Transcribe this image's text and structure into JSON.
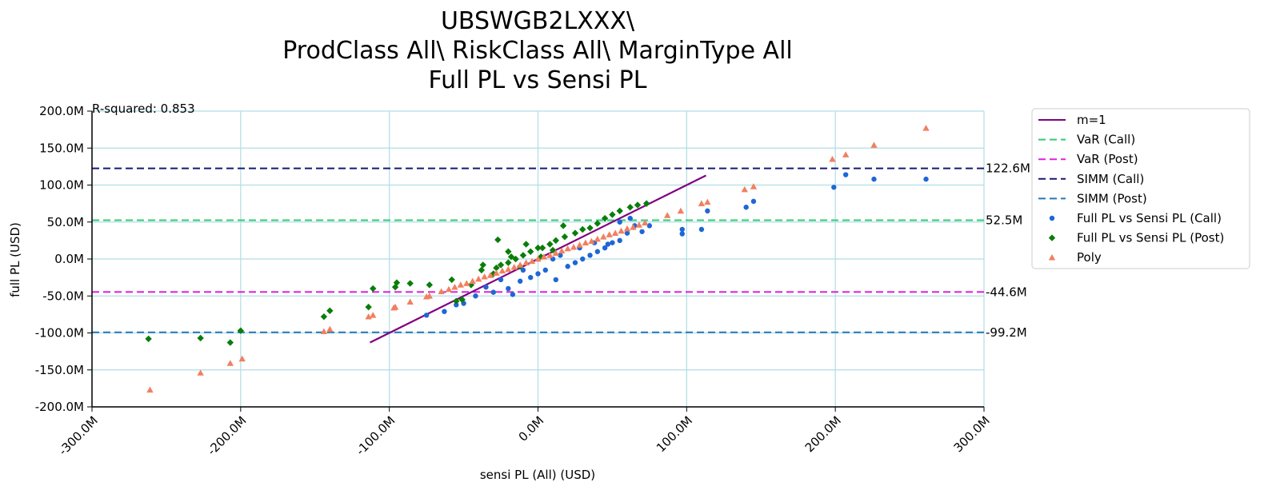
{
  "chart_data": {
    "type": "scatter",
    "title_lines": [
      "UBSWGB2LXXX\\",
      "ProdClass All\\ RiskClass All\\ MarginType All",
      "Full PL vs Sensi PL"
    ],
    "xlabel": "sensi PL (All) (USD)",
    "ylabel": "full PL (USD)",
    "xlim": [
      -300000000,
      300000000
    ],
    "ylim": [
      -200000000,
      200000000
    ],
    "x_ticks": [
      -300000000,
      -200000000,
      -100000000,
      0,
      100000000,
      200000000,
      300000000
    ],
    "x_tick_labels": [
      "-300.0M",
      "-200.0M",
      "-100.0M",
      "0.0M",
      "100.0M",
      "200.0M",
      "300.0M"
    ],
    "y_ticks": [
      200000000,
      150000000,
      100000000,
      50000000,
      0,
      -50000000,
      -100000000,
      -150000000,
      -200000000
    ],
    "y_tick_labels": [
      "200.0M",
      "150.0M",
      "100.0M",
      "50.0M",
      "0.0M",
      "-50.0M",
      "-100.0M",
      "-150.0M",
      "-200.0M"
    ],
    "grid": true,
    "legend_position": "outside-right",
    "annotation": "R-squared: 0.853",
    "lines": [
      {
        "name": "m=1",
        "color": "#800080",
        "style": "solid",
        "x": [
          -113000000,
          113000000
        ],
        "y": [
          -113000000,
          113000000
        ]
      }
    ],
    "hlines": [
      {
        "name": "VaR (Call)",
        "value": 52500000,
        "label": "52.5M",
        "color": "#2ecc71"
      },
      {
        "name": "VaR (Post)",
        "value": -44600000,
        "label": "-44.6M",
        "color": "#e020e0"
      },
      {
        "name": "SIMM (Call)",
        "value": 122600000,
        "label": "122.6M",
        "color": "#191970"
      },
      {
        "name": "SIMM (Post)",
        "value": -99200000,
        "label": "-99.2M",
        "color": "#2878b4"
      }
    ],
    "series": [
      {
        "name": "Full PL vs Sensi PL (Call)",
        "marker": "circle",
        "color": "#1f66d6",
        "points": [
          [
            -75000000,
            -76000000
          ],
          [
            -63000000,
            -71000000
          ],
          [
            -55000000,
            -62000000
          ],
          [
            -50000000,
            -60000000
          ],
          [
            -42000000,
            -50000000
          ],
          [
            -30000000,
            -45000000
          ],
          [
            -17000000,
            -48000000
          ],
          [
            -20000000,
            -40000000
          ],
          [
            -12000000,
            -30000000
          ],
          [
            -5000000,
            -25000000
          ],
          [
            0,
            -20000000
          ],
          [
            5000000,
            -15000000
          ],
          [
            12000000,
            -28000000
          ],
          [
            20000000,
            -10000000
          ],
          [
            25000000,
            -5000000
          ],
          [
            30000000,
            0
          ],
          [
            35000000,
            5000000
          ],
          [
            40000000,
            10000000
          ],
          [
            45000000,
            15000000
          ],
          [
            47000000,
            20000000
          ],
          [
            50000000,
            22000000
          ],
          [
            55000000,
            25000000
          ],
          [
            60000000,
            35000000
          ],
          [
            55000000,
            50000000
          ],
          [
            62000000,
            55000000
          ],
          [
            65000000,
            45000000
          ],
          [
            70000000,
            37000000
          ],
          [
            75000000,
            45000000
          ],
          [
            97000000,
            34000000
          ],
          [
            97000000,
            40000000
          ],
          [
            110000000,
            40000000
          ],
          [
            114000000,
            65000000
          ],
          [
            140000000,
            70000000
          ],
          [
            145000000,
            78000000
          ],
          [
            199000000,
            97000000
          ],
          [
            207000000,
            114000000
          ],
          [
            226000000,
            108000000
          ],
          [
            261000000,
            108000000
          ],
          [
            -35000000,
            -38000000
          ],
          [
            -25000000,
            -28000000
          ],
          [
            -10000000,
            -15000000
          ],
          [
            10000000,
            0
          ],
          [
            15000000,
            5000000
          ],
          [
            28000000,
            15000000
          ],
          [
            38000000,
            22000000
          ]
        ]
      },
      {
        "name": "Full PL vs Sensi PL (Post)",
        "marker": "diamond",
        "color": "#0a7d0a",
        "points": [
          [
            -262000000,
            -108000000
          ],
          [
            -227000000,
            -107000000
          ],
          [
            -207000000,
            -113000000
          ],
          [
            -200000000,
            -97000000
          ],
          [
            -144000000,
            -78000000
          ],
          [
            -140000000,
            -70000000
          ],
          [
            -114000000,
            -65000000
          ],
          [
            -111000000,
            -40000000
          ],
          [
            -96000000,
            -38000000
          ],
          [
            -95000000,
            -32000000
          ],
          [
            -86000000,
            -33000000
          ],
          [
            -73000000,
            -35000000
          ],
          [
            -58000000,
            -28000000
          ],
          [
            -55000000,
            -57000000
          ],
          [
            -51000000,
            -55000000
          ],
          [
            -45000000,
            -35000000
          ],
          [
            -38000000,
            -15000000
          ],
          [
            -37000000,
            -8000000
          ],
          [
            -30000000,
            -20000000
          ],
          [
            -28000000,
            -12000000
          ],
          [
            -25000000,
            -8000000
          ],
          [
            -20000000,
            -5000000
          ],
          [
            -15000000,
            0
          ],
          [
            -12000000,
            -10000000
          ],
          [
            -10000000,
            5000000
          ],
          [
            -8000000,
            20000000
          ],
          [
            -5000000,
            10000000
          ],
          [
            0,
            15000000
          ],
          [
            3000000,
            15000000
          ],
          [
            8000000,
            20000000
          ],
          [
            12000000,
            25000000
          ],
          [
            18000000,
            30000000
          ],
          [
            25000000,
            35000000
          ],
          [
            30000000,
            40000000
          ],
          [
            35000000,
            42000000
          ],
          [
            40000000,
            48000000
          ],
          [
            45000000,
            55000000
          ],
          [
            50000000,
            60000000
          ],
          [
            55000000,
            65000000
          ],
          [
            62000000,
            70000000
          ],
          [
            67000000,
            73000000
          ],
          [
            73000000,
            75000000
          ],
          [
            -27000000,
            26000000
          ],
          [
            17000000,
            45000000
          ],
          [
            -20000000,
            10000000
          ],
          [
            -18000000,
            3000000
          ],
          [
            2000000,
            3000000
          ],
          [
            10000000,
            12000000
          ]
        ]
      },
      {
        "name": "Poly",
        "marker": "triangle",
        "color": "#f08060",
        "points": [
          [
            -261000000,
            -177000000
          ],
          [
            -227000000,
            -154000000
          ],
          [
            -207000000,
            -141000000
          ],
          [
            -199000000,
            -135000000
          ],
          [
            -144000000,
            -98000000
          ],
          [
            -140000000,
            -95000000
          ],
          [
            -114000000,
            -78000000
          ],
          [
            -111000000,
            -76000000
          ],
          [
            -97000000,
            -66000000
          ],
          [
            -96000000,
            -65000000
          ],
          [
            -86000000,
            -58000000
          ],
          [
            -75000000,
            -51000000
          ],
          [
            -73000000,
            -50000000
          ],
          [
            -65000000,
            -44000000
          ],
          [
            -60000000,
            -41000000
          ],
          [
            -56000000,
            -38000000
          ],
          [
            -52000000,
            -35000000
          ],
          [
            -48000000,
            -33000000
          ],
          [
            -44000000,
            -30000000
          ],
          [
            -40000000,
            -27000000
          ],
          [
            -36000000,
            -24000000
          ],
          [
            -32000000,
            -22000000
          ],
          [
            -28000000,
            -19000000
          ],
          [
            -24000000,
            -16000000
          ],
          [
            -20000000,
            -14000000
          ],
          [
            -16000000,
            -11000000
          ],
          [
            -12000000,
            -8000000
          ],
          [
            -8000000,
            -5000000
          ],
          [
            -4000000,
            -3000000
          ],
          [
            0,
            0
          ],
          [
            4000000,
            3000000
          ],
          [
            8000000,
            5000000
          ],
          [
            12000000,
            8000000
          ],
          [
            16000000,
            11000000
          ],
          [
            20000000,
            14000000
          ],
          [
            24000000,
            16000000
          ],
          [
            28000000,
            19000000
          ],
          [
            32000000,
            22000000
          ],
          [
            36000000,
            24000000
          ],
          [
            40000000,
            27000000
          ],
          [
            44000000,
            30000000
          ],
          [
            48000000,
            33000000
          ],
          [
            52000000,
            35000000
          ],
          [
            56000000,
            38000000
          ],
          [
            60000000,
            41000000
          ],
          [
            64000000,
            43000000
          ],
          [
            68000000,
            46000000
          ],
          [
            72000000,
            49000000
          ],
          [
            87000000,
            59000000
          ],
          [
            96000000,
            65000000
          ],
          [
            110000000,
            75000000
          ],
          [
            114000000,
            77000000
          ],
          [
            139000000,
            94000000
          ],
          [
            145000000,
            98000000
          ],
          [
            198000000,
            135000000
          ],
          [
            207000000,
            141000000
          ],
          [
            226000000,
            154000000
          ],
          [
            261000000,
            177000000
          ]
        ]
      }
    ]
  }
}
